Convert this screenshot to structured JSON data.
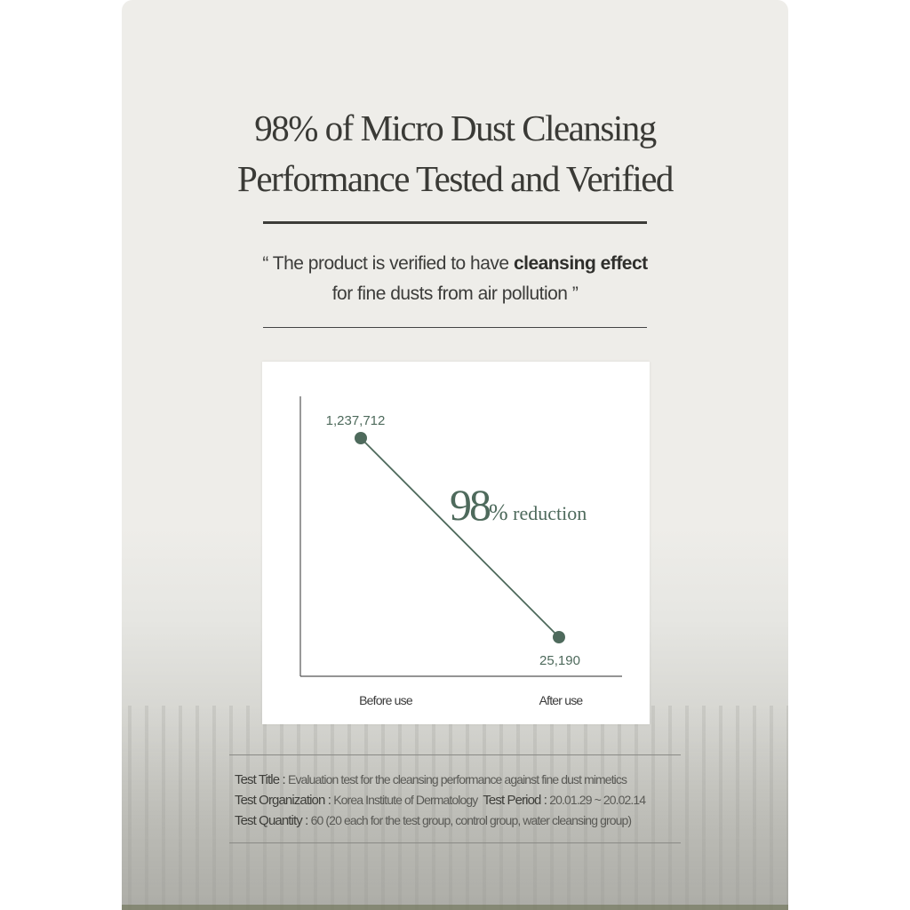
{
  "header": {
    "title_line1": "98% of Micro Dust Cleansing",
    "title_line2": "Performance Tested and Verified"
  },
  "quote": {
    "open": "“ The product is verified to have ",
    "bold": "cleansing effect",
    "line2": "for fine dusts from air pollution ”"
  },
  "chart_data": {
    "type": "line",
    "categories": [
      "Before use",
      "After use"
    ],
    "series": [
      {
        "values": [
          1237712,
          25190
        ]
      }
    ],
    "data_labels": [
      "1,237,712",
      "25,190"
    ],
    "annotation": {
      "big": "98",
      "pct": "%",
      "text": " reduction"
    },
    "grid": false,
    "color": "#4e6a5c"
  },
  "test_info": {
    "title_key": "Test Title : ",
    "title_val": "Evaluation test for the cleansing performance against fine dust mimetics",
    "org_key": "Test Organization : ",
    "org_val": "Korea Institute of Dermatology",
    "period_key": "Test Period : ",
    "period_val": "20.01.29 ~ 20.02.14",
    "qty_key": "Test Quantity : ",
    "qty_val": "60 (20 each for the test group, control group, water cleansing group)"
  }
}
